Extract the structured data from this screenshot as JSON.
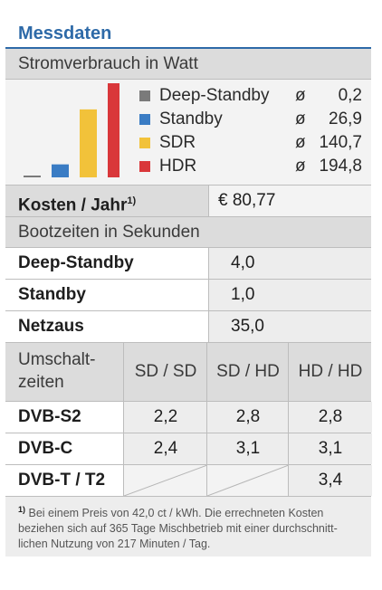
{
  "title": "Messdaten",
  "power": {
    "section": "Stromverbrauch in Watt",
    "symbol": "ø",
    "colors": {
      "deep": "#7a7a7a",
      "standby": "#3a7cc4",
      "sdr": "#f2c23a",
      "hdr": "#d9373a"
    },
    "legend": [
      {
        "label": "Deep-Standby",
        "value": "0,2"
      },
      {
        "label": "Standby",
        "value": "26,9"
      },
      {
        "label": "SDR",
        "value": "140,7"
      },
      {
        "label": "HDR",
        "value": "194,8"
      }
    ]
  },
  "chart_data": {
    "type": "bar",
    "categories": [
      "Deep-Standby",
      "Standby",
      "SDR",
      "HDR"
    ],
    "values": [
      0.2,
      26.9,
      140.7,
      194.8
    ],
    "ylim": [
      0,
      194.8
    ]
  },
  "cost": {
    "label": "Kosten / Jahr",
    "note_mark": "1)",
    "value": "€ 80,77"
  },
  "boot": {
    "section": "Bootzeiten in Sekunden",
    "rows": [
      {
        "label": "Deep-Standby",
        "value": "4,0"
      },
      {
        "label": "Standby",
        "value": "1,0"
      },
      {
        "label": "Netzaus",
        "value": "35,0"
      }
    ]
  },
  "switch": {
    "label_line1": "Umschalt-",
    "label_line2": "zeiten",
    "headers": [
      "SD / SD",
      "SD / HD",
      "HD / HD"
    ],
    "rows": [
      {
        "label": "DVB-S2",
        "values": [
          "2,2",
          "2,8",
          "2,8"
        ]
      },
      {
        "label": "DVB-C",
        "values": [
          "2,4",
          "3,1",
          "3,1"
        ]
      },
      {
        "label": "DVB-T / T2",
        "values": [
          "",
          "",
          "3,4"
        ]
      }
    ]
  },
  "footnote": {
    "mark": "1)",
    "text": "Bei einem Preis von 42,0 ct / kWh. Die errechneten Kosten beziehen sich auf 365 Tage Mischbetrieb mit einer durchschnitt­lichen Nutzung von 217 Minuten / Tag."
  }
}
